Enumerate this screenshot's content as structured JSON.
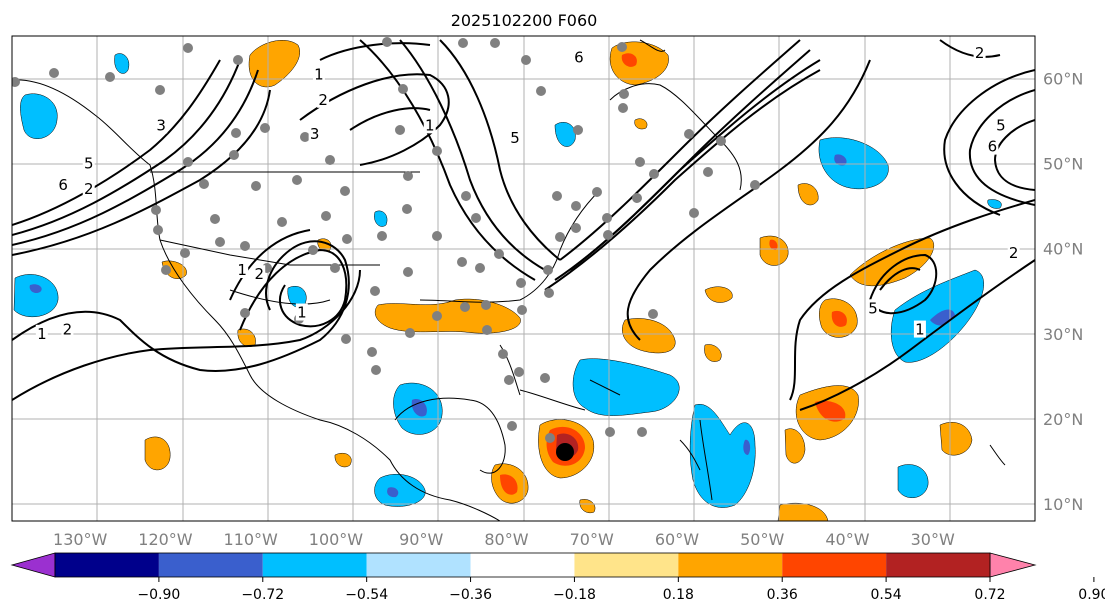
{
  "title": "2025102200 F060",
  "map": {
    "lon_range": [
      -138,
      -18
    ],
    "lat_range": [
      8,
      65
    ],
    "lon_ticks": [
      {
        "value": -130,
        "label": "130°W"
      },
      {
        "value": -120,
        "label": "120°W"
      },
      {
        "value": -110,
        "label": "110°W"
      },
      {
        "value": -100,
        "label": "100°W"
      },
      {
        "value": -90,
        "label": "90°W"
      },
      {
        "value": -80,
        "label": "80°W"
      },
      {
        "value": -70,
        "label": "70°W"
      },
      {
        "value": -60,
        "label": "60°W"
      },
      {
        "value": -50,
        "label": "50°W"
      },
      {
        "value": -40,
        "label": "40°W"
      },
      {
        "value": -30,
        "label": "30°W"
      }
    ],
    "lat_ticks": [
      {
        "value": 60,
        "label": "60°N"
      },
      {
        "value": 50,
        "label": "50°N"
      },
      {
        "value": 40,
        "label": "40°N"
      },
      {
        "value": 30,
        "label": "30°N"
      },
      {
        "value": 20,
        "label": "20°N"
      },
      {
        "value": 10,
        "label": "10°N"
      }
    ],
    "gridlines": true
  },
  "colorbar": {
    "orientation": "horizontal",
    "extend": "both",
    "colors": [
      "#9b30d0",
      "#00008b",
      "#3a5fcd",
      "#00bfff",
      "#b0e2ff",
      "#ffffff",
      "#ffe48a",
      "#ffa500",
      "#ff4500",
      "#b22222",
      "#ff82ab"
    ],
    "tick_labels": [
      "−0.90",
      "−0.72",
      "−0.54",
      "−0.36",
      "−0.18",
      "0.18",
      "0.36",
      "0.54",
      "0.72",
      "0.90"
    ]
  },
  "contour_labels": [
    {
      "text": "6",
      "lon": -132,
      "lat": 47.5
    },
    {
      "text": "5",
      "lon": -129,
      "lat": 50
    },
    {
      "text": "2",
      "lon": -129,
      "lat": 47
    },
    {
      "text": "3",
      "lon": -120.5,
      "lat": 54.5
    },
    {
      "text": "1",
      "lon": -102,
      "lat": 60.5
    },
    {
      "text": "2",
      "lon": -101.5,
      "lat": 57.5
    },
    {
      "text": "3",
      "lon": -102.5,
      "lat": 53.5
    },
    {
      "text": "1",
      "lon": -89,
      "lat": 54.5
    },
    {
      "text": "5",
      "lon": -79,
      "lat": 53
    },
    {
      "text": "6",
      "lon": -71.5,
      "lat": 62.5
    },
    {
      "text": "2",
      "lon": -24.5,
      "lat": 63
    },
    {
      "text": "5",
      "lon": -22,
      "lat": 54.5
    },
    {
      "text": "6",
      "lon": -23,
      "lat": 52
    },
    {
      "text": "2",
      "lon": -20.5,
      "lat": 39.5
    },
    {
      "text": "5",
      "lon": -37,
      "lat": 33
    },
    {
      "text": "1",
      "lon": -31.5,
      "lat": 30.5
    },
    {
      "text": "1",
      "lon": -111,
      "lat": 37.5
    },
    {
      "text": "2",
      "lon": -109,
      "lat": 37
    },
    {
      "text": "1",
      "lon": -104,
      "lat": 32.5
    },
    {
      "text": "1",
      "lon": -134.5,
      "lat": 30
    },
    {
      "text": "2",
      "lon": -131.5,
      "lat": 30.5
    }
  ],
  "colors": {
    "gridline": "#b0b0b0",
    "coastline": "#000000",
    "contour": "#000000",
    "station_dot": "#808080",
    "storm_center": "#000000"
  }
}
